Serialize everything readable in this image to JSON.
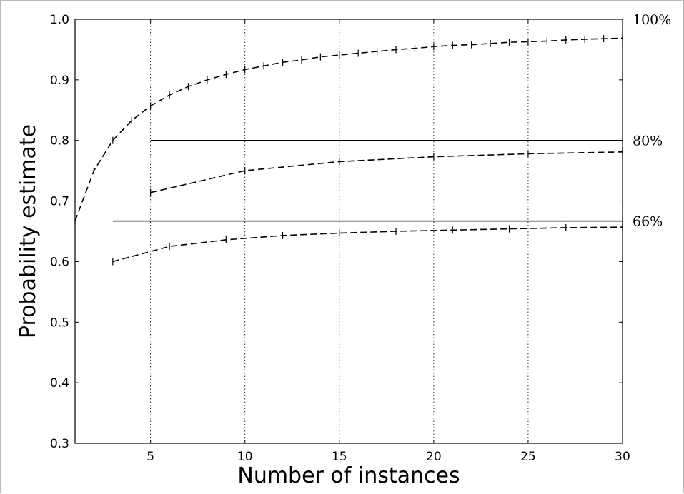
{
  "chart_data": {
    "type": "line",
    "xlabel": "Number of instances",
    "ylabel": "Probability estimate",
    "xlim": [
      1,
      30
    ],
    "ylim": [
      0.3,
      1.0
    ],
    "x_ticks": [
      5,
      10,
      15,
      20,
      25,
      30
    ],
    "y_ticks": [
      0.3,
      0.4,
      0.5,
      0.6,
      0.7,
      0.8,
      0.9,
      1.0
    ],
    "vertical_gridlines_at_x": [
      5,
      10,
      15,
      20,
      25
    ],
    "reference_lines": [
      {
        "label": "100%",
        "y": 1.0,
        "drawn": false
      },
      {
        "label": "80%",
        "y": 0.8,
        "x_range": [
          5,
          30
        ],
        "style": "solid"
      },
      {
        "label": "66%",
        "y": 0.667,
        "x_range": [
          3,
          30
        ],
        "style": "solid"
      }
    ],
    "series": [
      {
        "style": "dashed",
        "reference": "100%",
        "x": [
          1,
          2,
          3,
          4,
          5,
          6,
          7,
          8,
          9,
          10,
          11,
          12,
          13,
          14,
          15,
          16,
          17,
          18,
          19,
          20,
          21,
          22,
          23,
          24,
          25,
          26,
          27,
          28,
          29,
          30
        ],
        "y": [
          0.667,
          0.75,
          0.8,
          0.833,
          0.857,
          0.875,
          0.889,
          0.9,
          0.909,
          0.917,
          0.923,
          0.929,
          0.933,
          0.938,
          0.941,
          0.944,
          0.947,
          0.95,
          0.952,
          0.955,
          0.957,
          0.958,
          0.96,
          0.962,
          0.963,
          0.964,
          0.966,
          0.967,
          0.968,
          0.969
        ]
      },
      {
        "style": "dashed",
        "reference": "80%",
        "x": [
          5,
          10,
          15,
          20,
          25,
          30
        ],
        "y": [
          0.714,
          0.75,
          0.765,
          0.773,
          0.778,
          0.781
        ]
      },
      {
        "style": "dashed",
        "reference": "66%",
        "x": [
          3,
          6,
          9,
          12,
          15,
          18,
          21,
          24,
          27,
          30
        ],
        "y": [
          0.6,
          0.625,
          0.636,
          0.643,
          0.647,
          0.65,
          0.652,
          0.654,
          0.656,
          0.657
        ]
      }
    ]
  }
}
